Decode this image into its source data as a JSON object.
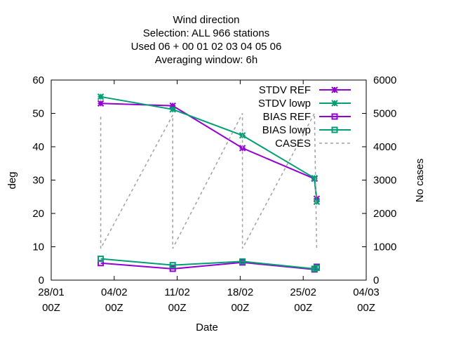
{
  "chart_data": {
    "type": "line",
    "title_lines": [
      "Wind direction",
      "Selection: ALL    966 stations",
      "Used  06  + 00 01  02 03  04 05 06",
      "Averaging window:  6h"
    ],
    "xlabel": "Date",
    "ylabel": "deg",
    "y2label": "No cases",
    "xlim": [
      "2021-01-28 00:00",
      "2021-03-04 00:00"
    ],
    "ylim": [
      0,
      60
    ],
    "y2lim": [
      0,
      6000
    ],
    "x_ticks": [
      {
        "date": "2021-01-28 00:00",
        "line1": "28/01",
        "line2": "00Z"
      },
      {
        "date": "2021-02-04 00:00",
        "line1": "04/02",
        "line2": "00Z"
      },
      {
        "date": "2021-02-11 00:00",
        "line1": "11/02",
        "line2": "00Z"
      },
      {
        "date": "2021-02-18 00:00",
        "line1": "18/02",
        "line2": "00Z"
      },
      {
        "date": "2021-02-25 00:00",
        "line1": "25/02",
        "line2": "00Z"
      },
      {
        "date": "2021-03-04 00:00",
        "line1": "04/03",
        "line2": "00Z"
      }
    ],
    "y_ticks": [
      0,
      10,
      20,
      30,
      40,
      50,
      60
    ],
    "y2_ticks": [
      0,
      1000,
      2000,
      3000,
      4000,
      5000,
      6000
    ],
    "legend_position": "top-right",
    "series": [
      {
        "name": "STDV REF",
        "color": "#9400d3",
        "style": "line-points",
        "marker": "asterisk",
        "axis": "y",
        "points": [
          {
            "x": "2021-02-02 12:00",
            "y": 53.0
          },
          {
            "x": "2021-02-10 12:00",
            "y": 52.3
          },
          {
            "x": "2021-02-18 06:00",
            "y": 39.6
          },
          {
            "x": "2021-02-26 06:00",
            "y": 30.4
          },
          {
            "x": "2021-02-26 12:00",
            "y": 24.4
          }
        ]
      },
      {
        "name": "STDV lowp",
        "color": "#009e73",
        "style": "line-points",
        "marker": "asterisk",
        "axis": "y",
        "points": [
          {
            "x": "2021-02-02 12:00",
            "y": 55.0
          },
          {
            "x": "2021-02-10 12:00",
            "y": 51.2
          },
          {
            "x": "2021-02-18 06:00",
            "y": 43.4
          },
          {
            "x": "2021-02-26 06:00",
            "y": 30.6
          },
          {
            "x": "2021-02-26 12:00",
            "y": 23.5
          }
        ]
      },
      {
        "name": "BIAS REF",
        "color": "#9400d3",
        "style": "line-points",
        "marker": "square",
        "axis": "y",
        "points": [
          {
            "x": "2021-02-02 12:00",
            "y": 5.1
          },
          {
            "x": "2021-02-10 12:00",
            "y": 3.4
          },
          {
            "x": "2021-02-18 06:00",
            "y": 5.3
          },
          {
            "x": "2021-02-26 06:00",
            "y": 3.2
          },
          {
            "x": "2021-02-26 12:00",
            "y": 4.0
          }
        ]
      },
      {
        "name": "BIAS lowp",
        "color": "#009e73",
        "style": "line-points",
        "marker": "square",
        "axis": "y",
        "points": [
          {
            "x": "2021-02-02 12:00",
            "y": 6.4
          },
          {
            "x": "2021-02-10 12:00",
            "y": 4.5
          },
          {
            "x": "2021-02-18 06:00",
            "y": 5.6
          },
          {
            "x": "2021-02-26 06:00",
            "y": 3.4
          },
          {
            "x": "2021-02-26 12:00",
            "y": 3.7
          }
        ]
      },
      {
        "name": "CASES",
        "color": "#a0a0a0",
        "style": "dashed",
        "marker": "none",
        "axis": "y2",
        "points": [
          {
            "x": "2021-02-02 12:00",
            "y": 4900
          },
          {
            "x": "2021-02-02 12:00",
            "y": 950
          },
          {
            "x": "2021-02-10 12:00",
            "y": 4950
          },
          {
            "x": "2021-02-10 12:00",
            "y": 950
          },
          {
            "x": "2021-02-18 06:00",
            "y": 5000
          },
          {
            "x": "2021-02-18 06:00",
            "y": 950
          },
          {
            "x": "2021-02-26 06:00",
            "y": 5000
          },
          {
            "x": "2021-02-26 12:00",
            "y": 950
          }
        ]
      }
    ]
  }
}
